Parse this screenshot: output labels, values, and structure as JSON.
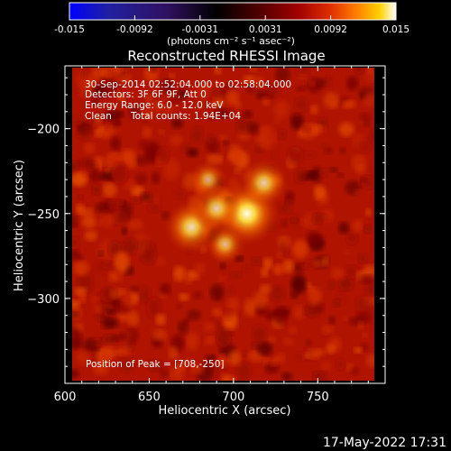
{
  "chart_data": {
    "type": "heatmap",
    "title": "Reconstructed RHESSI Image",
    "xlabel": "Heliocentric X (arcsec)",
    "ylabel": "Heliocentric Y (arcsec)",
    "xlim": [
      600,
      790
    ],
    "ylim": [
      -350,
      -163
    ],
    "x_ticks": [
      600,
      650,
      700,
      750
    ],
    "y_ticks": [
      -200,
      -250,
      -300
    ],
    "colorbar": {
      "min": -0.015,
      "max": 0.015,
      "ticks": [
        "-0.015",
        "-0.0092",
        "-0.0031",
        "0.0031",
        "0.0092",
        "0.015"
      ],
      "unit_label": "(photons cm⁻² s⁻¹ asec⁻²)",
      "colors": [
        "#0000ff",
        "#2020a0",
        "#301060",
        "#000000",
        "#500000",
        "#a00000",
        "#e03000",
        "#ff8000",
        "#ffd000",
        "#ffffff"
      ]
    },
    "annotations": [
      "30-Sep-2014 02:52:04.000 to 02:58:04.000",
      "Detectors: 3F 6F 9F, Att 0",
      "Energy Range: 6.0 - 12.0 keV",
      "Clean",
      "Total counts: 1.94E+04"
    ],
    "peak_label": "Position of Peak = [708,-250]",
    "sources": [
      {
        "x": 708,
        "y": -250,
        "intensity": 0.015
      },
      {
        "x": 675,
        "y": -258,
        "intensity": 0.011
      },
      {
        "x": 690,
        "y": -247,
        "intensity": 0.009
      },
      {
        "x": 718,
        "y": -232,
        "intensity": 0.009
      },
      {
        "x": 695,
        "y": -268,
        "intensity": 0.006
      },
      {
        "x": 685,
        "y": -230,
        "intensity": 0.005
      }
    ]
  },
  "footer_timestamp": "17-May-2022 17:31"
}
